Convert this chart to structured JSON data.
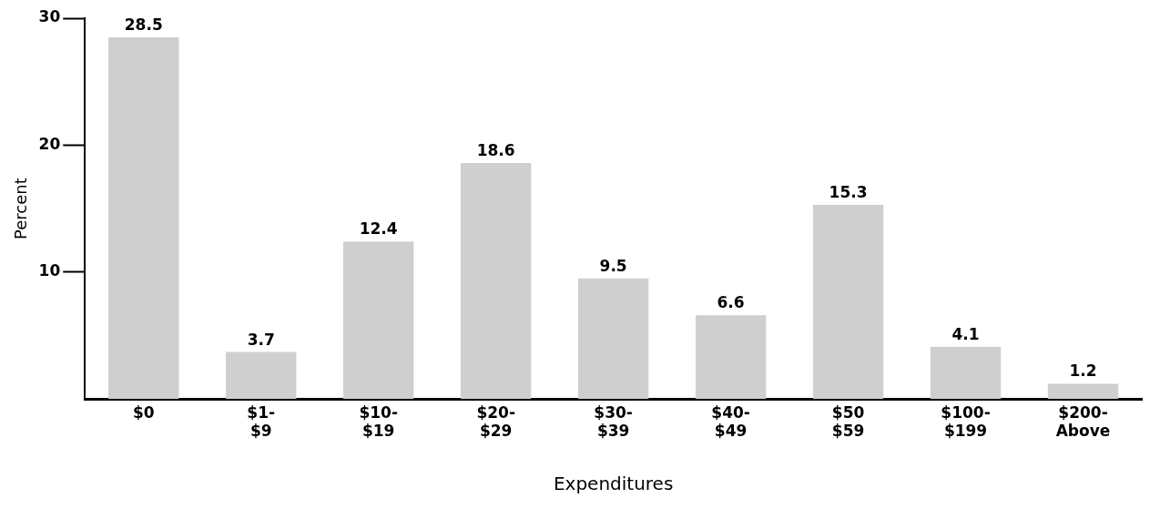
{
  "chart_data": {
    "type": "bar",
    "xlabel": "Expenditures",
    "ylabel": "Percent",
    "categories": [
      "$0",
      "$1-\n$9",
      "$10-\n$19",
      "$20-\n$29",
      "$30-\n$39",
      "$40-\n$49",
      "$50\n$59",
      "$100-\n$199",
      "$200-\nAbove"
    ],
    "values": [
      28.5,
      3.7,
      12.4,
      18.6,
      9.5,
      6.6,
      15.3,
      4.1,
      1.2
    ],
    "color": "#cfcfcf",
    "ylim": [
      0,
      30
    ],
    "yticks": [
      10,
      20,
      30
    ],
    "grid": false,
    "legend": false,
    "data_labels": true
  }
}
